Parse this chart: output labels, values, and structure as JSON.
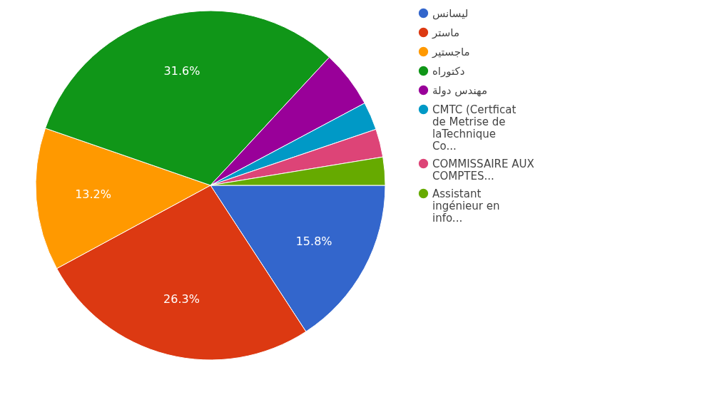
{
  "chart_data": {
    "type": "pie",
    "categories": [
      "ليسانس",
      "ماستر",
      "ماجستير",
      "دكتوراه",
      "مهندس دولة",
      "CMTC (Certficat de Metrise de laTechnique Co...",
      "COMMISSAIRE AUX COMPTES...",
      "Assistant ingénieur en info..."
    ],
    "values": [
      15.8,
      26.3,
      13.2,
      31.6,
      5.3,
      2.6,
      2.6,
      2.6
    ],
    "colors": [
      "#3366cc",
      "#dc3912",
      "#ff9900",
      "#109618",
      "#990099",
      "#0099c6",
      "#dd4477",
      "#66aa00"
    ],
    "value_labels": [
      "15.8%",
      "26.3%",
      "13.2%",
      "31.6%",
      null,
      null,
      null,
      null
    ],
    "legend": "right"
  }
}
